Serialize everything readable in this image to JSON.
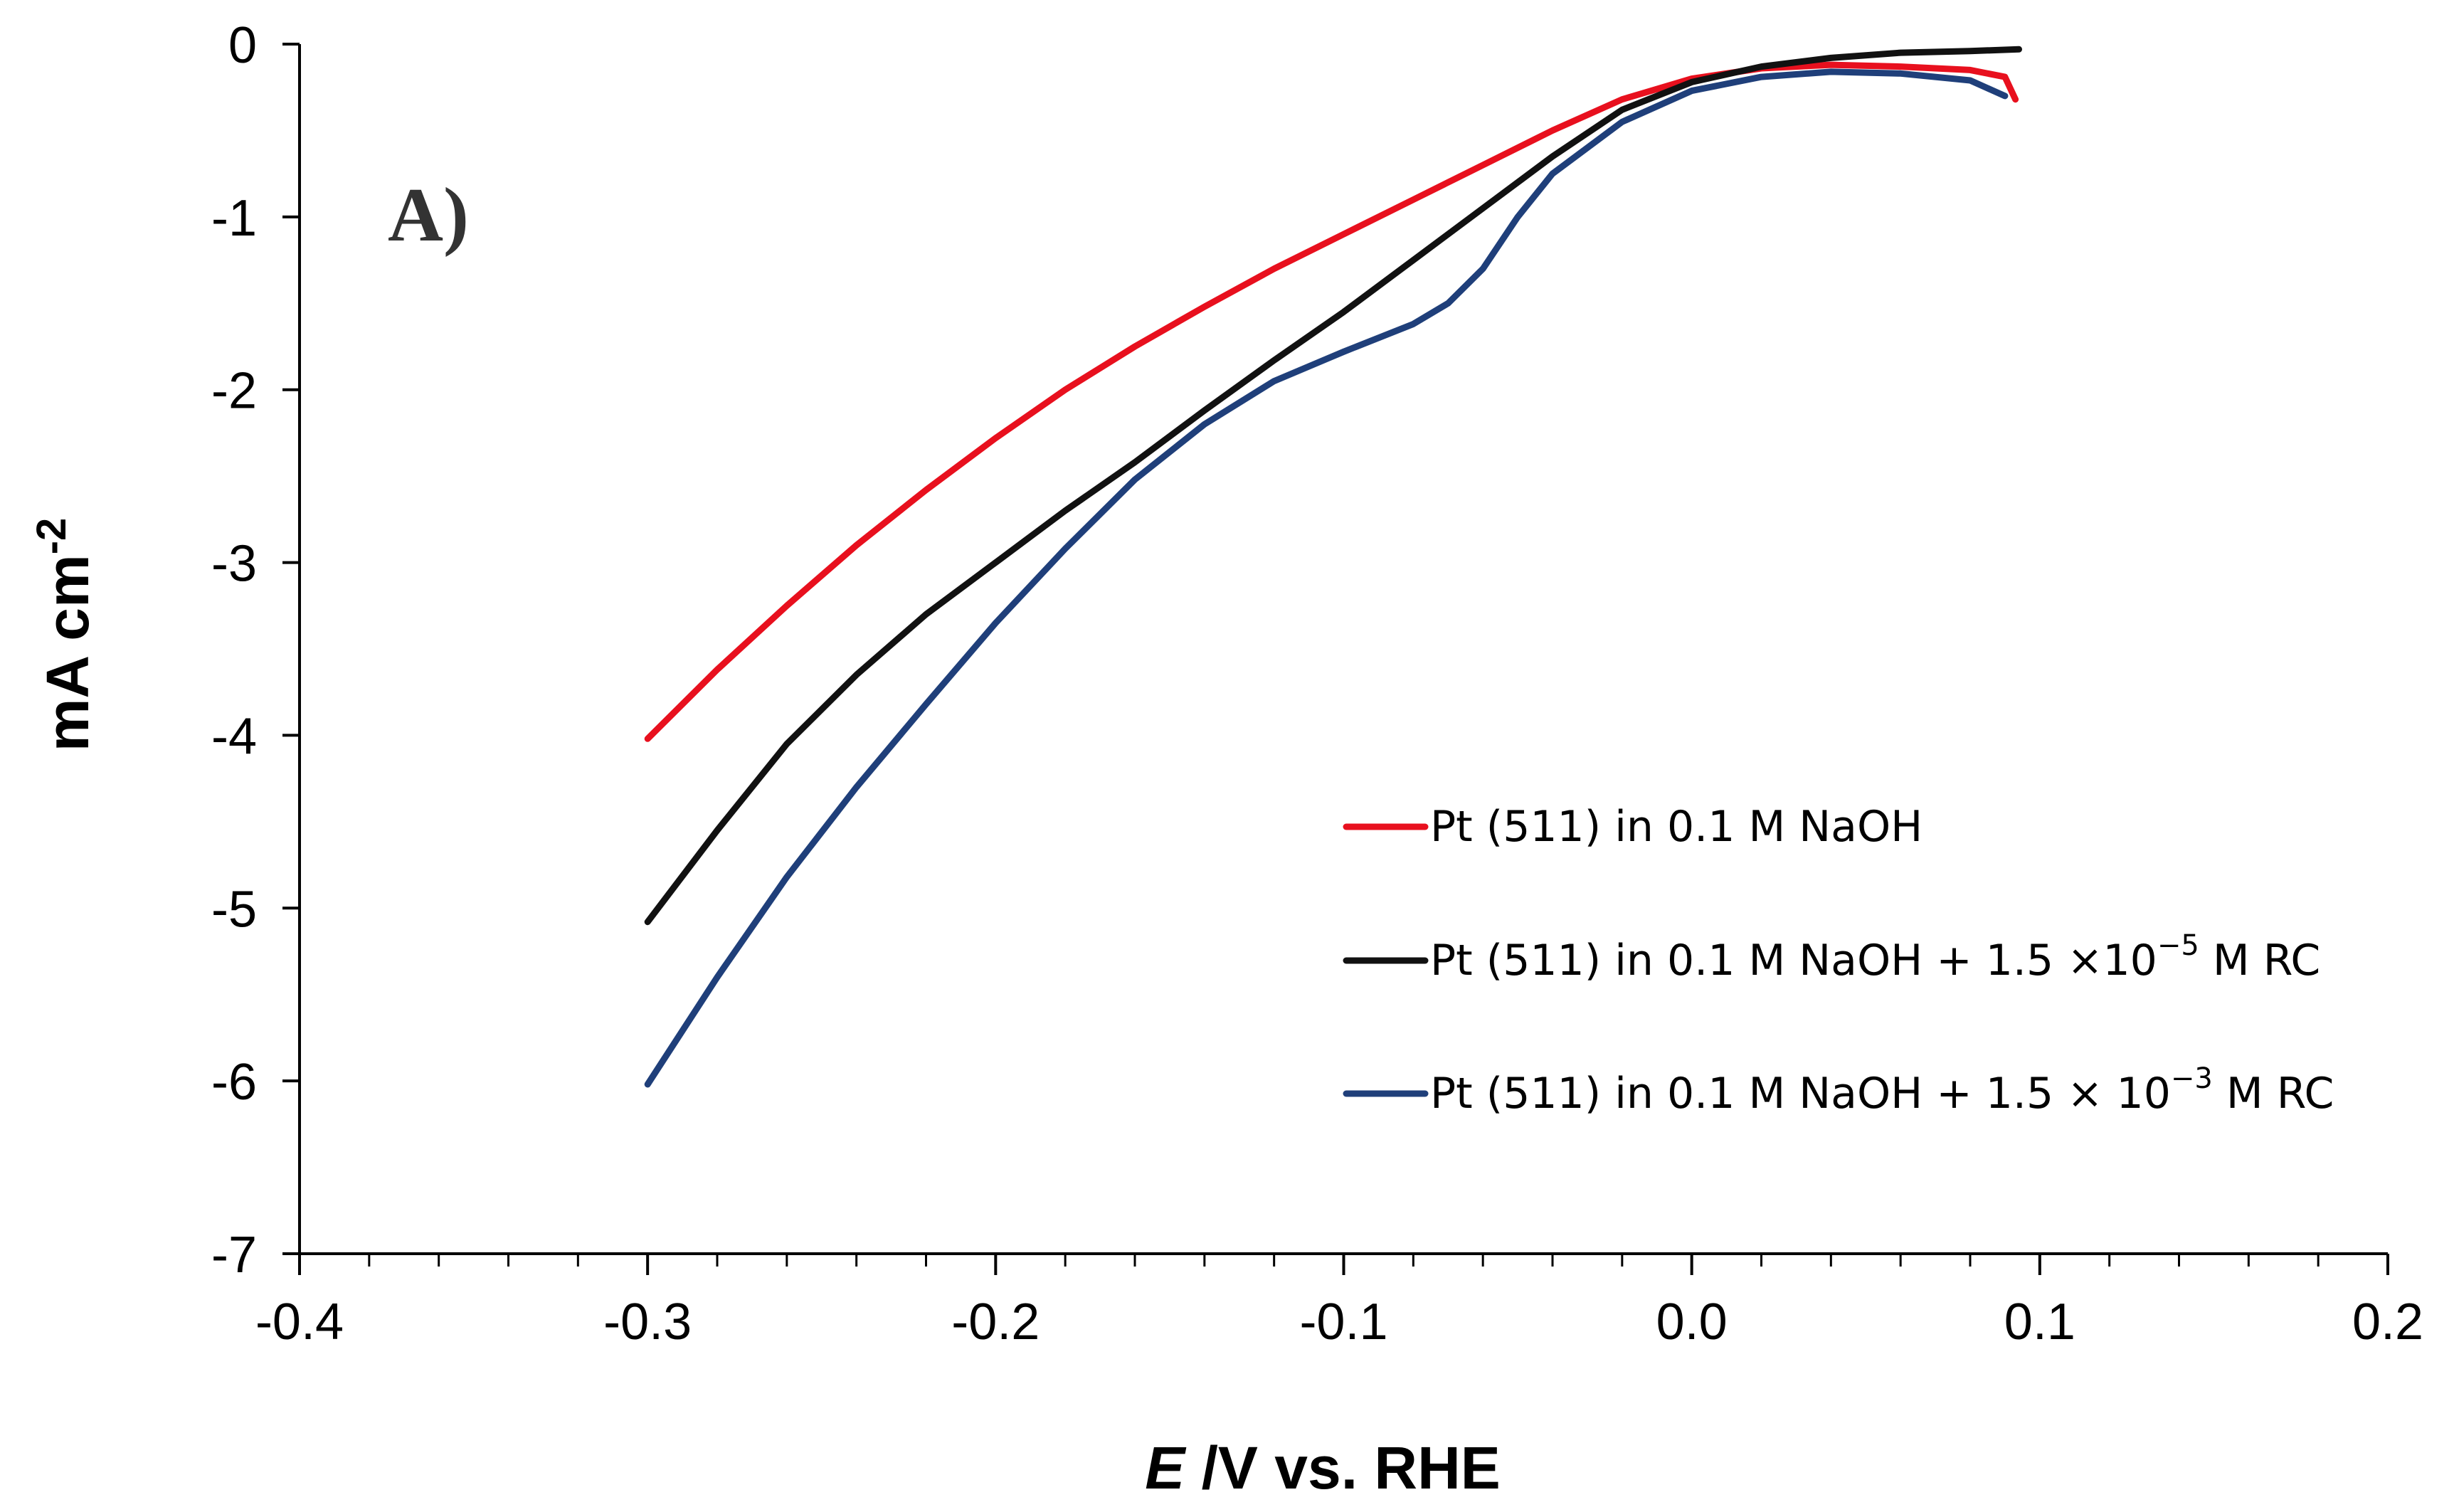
{
  "chart_data": {
    "type": "line",
    "panel_label": "A)",
    "xlabel_italic": "E",
    "xlabel_rest": " /V vs. RHE",
    "ylabel": "mA cm",
    "ylabel_sup": "-2",
    "xlim": [
      -0.4,
      0.2
    ],
    "ylim": [
      -7,
      0
    ],
    "x_ticks": [
      -0.4,
      -0.3,
      -0.2,
      -0.1,
      0.0,
      0.1,
      0.2
    ],
    "x_tick_labels": [
      "-0.4",
      "-0.3",
      "-0.2",
      "-0.1",
      "0.0",
      "0.1",
      "0.2"
    ],
    "y_ticks": [
      0,
      -1,
      -2,
      -3,
      -4,
      -5,
      -6,
      -7
    ],
    "y_tick_labels": [
      "0",
      "-1",
      "-2",
      "-3",
      "-4",
      "-5",
      "-6",
      "-7"
    ],
    "x_minor_step": 0.02,
    "legend_position": "lower-right",
    "series": [
      {
        "name": "Pt (511) in 0.1 M NaOH",
        "legend_parts": [
          "Pt (511) in 0.1 M NaOH"
        ],
        "color": "#e8101e",
        "x": [
          -0.3,
          -0.28,
          -0.26,
          -0.24,
          -0.22,
          -0.2,
          -0.18,
          -0.16,
          -0.14,
          -0.12,
          -0.1,
          -0.08,
          -0.06,
          -0.04,
          -0.02,
          0.0,
          0.02,
          0.04,
          0.06,
          0.08,
          0.09,
          0.093
        ],
        "values": [
          -4.02,
          -3.62,
          -3.25,
          -2.9,
          -2.58,
          -2.28,
          -2.0,
          -1.75,
          -1.52,
          -1.3,
          -1.1,
          -0.9,
          -0.7,
          -0.5,
          -0.32,
          -0.2,
          -0.14,
          -0.12,
          -0.13,
          -0.15,
          -0.19,
          -0.32
        ]
      },
      {
        "name": "Pt (511) in 0.1 M NaOH + 1.5 ×10⁻⁵ M  RC",
        "legend_parts": [
          "Pt (511) in 0.1 M NaOH + 1.5 ×10",
          "−5",
          " M  RC"
        ],
        "color": "#111111",
        "x": [
          -0.3,
          -0.28,
          -0.26,
          -0.24,
          -0.22,
          -0.2,
          -0.18,
          -0.16,
          -0.14,
          -0.12,
          -0.1,
          -0.08,
          -0.06,
          -0.04,
          -0.02,
          0.0,
          0.02,
          0.04,
          0.06,
          0.08,
          0.094
        ],
        "values": [
          -5.08,
          -4.55,
          -4.05,
          -3.65,
          -3.3,
          -3.0,
          -2.7,
          -2.42,
          -2.12,
          -1.83,
          -1.55,
          -1.25,
          -0.95,
          -0.65,
          -0.38,
          -0.22,
          -0.13,
          -0.08,
          -0.05,
          -0.04,
          -0.03
        ]
      },
      {
        "name": "Pt (511) in 0.1 M NaOH + 1.5 × 10⁻³ M RC",
        "legend_parts": [
          "Pt (511) in 0.1 M NaOH + 1.5 × 10",
          "−3",
          " M RC"
        ],
        "color": "#1f3f7a",
        "x": [
          -0.3,
          -0.28,
          -0.26,
          -0.24,
          -0.22,
          -0.2,
          -0.18,
          -0.16,
          -0.14,
          -0.12,
          -0.1,
          -0.08,
          -0.07,
          -0.06,
          -0.05,
          -0.04,
          -0.02,
          0.0,
          0.02,
          0.04,
          0.06,
          0.08,
          0.09
        ],
        "values": [
          -6.02,
          -5.4,
          -4.82,
          -4.3,
          -3.82,
          -3.35,
          -2.92,
          -2.52,
          -2.2,
          -1.95,
          -1.78,
          -1.62,
          -1.5,
          -1.3,
          -1.0,
          -0.75,
          -0.45,
          -0.27,
          -0.19,
          -0.16,
          -0.17,
          -0.21,
          -0.3
        ]
      }
    ]
  }
}
